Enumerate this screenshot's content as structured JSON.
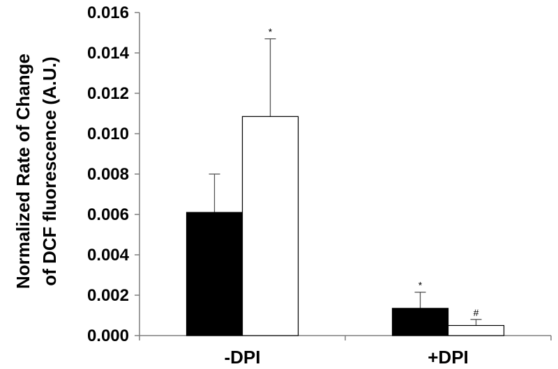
{
  "chart_data": {
    "type": "bar",
    "categories": [
      "-DPI",
      "+DPI"
    ],
    "series": [
      {
        "values": [
          0.0061,
          0.00135
        ],
        "errors": [
          0.0019,
          0.0008
        ],
        "annotations": [
          "",
          "*"
        ],
        "color": "#000000"
      },
      {
        "values": [
          0.01085,
          0.0005
        ],
        "errors": [
          0.00385,
          0.0003
        ],
        "annotations": [
          "*",
          "#"
        ],
        "color": "#ffffff"
      }
    ],
    "ylabel_lines": [
      "Normalized Rate of Change",
      "of DCF fluorescence (A.U.)"
    ],
    "y_ticks": [
      "0.000",
      "0.002",
      "0.004",
      "0.006",
      "0.008",
      "0.010",
      "0.012",
      "0.014",
      "0.016"
    ],
    "ylim": [
      0,
      0.016
    ],
    "grid": false
  }
}
